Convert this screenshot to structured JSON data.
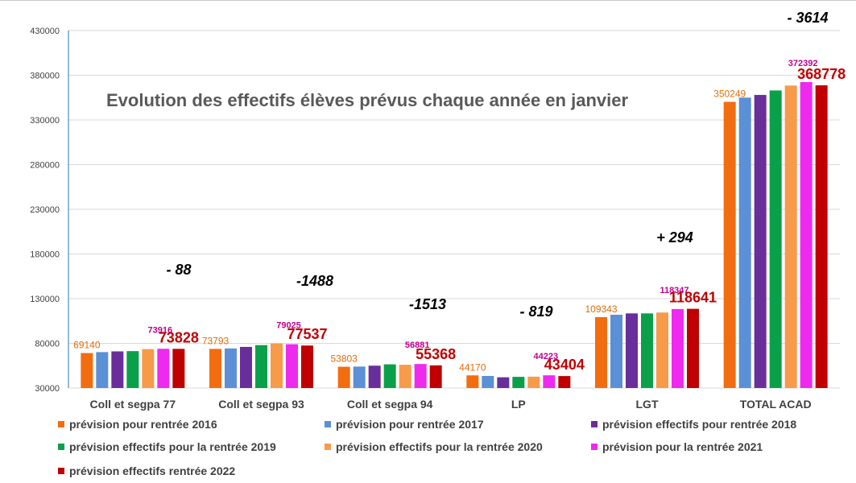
{
  "chart_data": {
    "type": "bar",
    "title": "Evolution des effectifs élèves prévus chaque année en janvier",
    "xlabel": "",
    "ylabel": "",
    "ylim": [
      30000,
      430000
    ],
    "yticks": [
      "430000",
      "380000",
      "330000",
      "280000",
      "230000",
      "180000",
      "130000",
      "80000",
      "30000"
    ],
    "grid": true,
    "legend_position": "bottom",
    "categories": [
      "Coll et segpa 77",
      "Coll et segpa 93",
      "Coll et segpa 94",
      "LP",
      "LGT",
      "TOTAL ACAD"
    ],
    "series": [
      {
        "name": "prévision pour rentrée 2016",
        "color": "#F26D0F",
        "values": [
          69140,
          73793,
          53803,
          44170,
          109343,
          350249
        ]
      },
      {
        "name": "prévision pour rentrée 2017",
        "color": "#5B8FD6",
        "values": [
          70200,
          74300,
          54000,
          43500,
          112000,
          355000
        ]
      },
      {
        "name": "prévision effectifs  pour rentrée 2018",
        "color": "#6A2E9A",
        "values": [
          71000,
          76000,
          55000,
          42000,
          113500,
          358000
        ]
      },
      {
        "name": "prévision effectifs pour la rentrée 2019",
        "color": "#0AA04A",
        "values": [
          71300,
          78000,
          56500,
          42500,
          113500,
          363000
        ]
      },
      {
        "name": "prévision effectifs pour la rentrée 2020",
        "color": "#F79A4A",
        "values": [
          73500,
          79800,
          56000,
          42700,
          114500,
          368500
        ]
      },
      {
        "name": "prévision pour la rentrée 2021",
        "color": "#EE2AEE",
        "values": [
          73916,
          79025,
          56881,
          44223,
          118347,
          372392
        ]
      },
      {
        "name": "prévision  effectifs rentrée 2022",
        "color": "#C00000",
        "values": [
          73828,
          77537,
          55368,
          43404,
          118641,
          368778
        ]
      }
    ],
    "annotations": {
      "labels_2016": [
        "69140",
        "73793",
        "53803",
        "44170",
        "109343",
        "350249"
      ],
      "labels_2021": [
        "73916",
        "79025",
        "56881",
        "44223",
        "118347",
        "372392"
      ],
      "labels_2022": [
        "73828",
        "77537",
        "55368",
        "43404",
        "118641",
        "368778"
      ],
      "deltas": [
        "- 88",
        "-1488",
        "-1513",
        "- 819",
        "+ 294",
        "- 3614"
      ]
    },
    "colors": {
      "label_2016": "#E36C0A",
      "label_2021": "#C00090",
      "label_2022": "#C00000",
      "delta": "#000000",
      "title": "#595959",
      "axis_text": "#404040",
      "gridline": "#D9D9D9",
      "axis_line": "#2E75B6"
    }
  }
}
